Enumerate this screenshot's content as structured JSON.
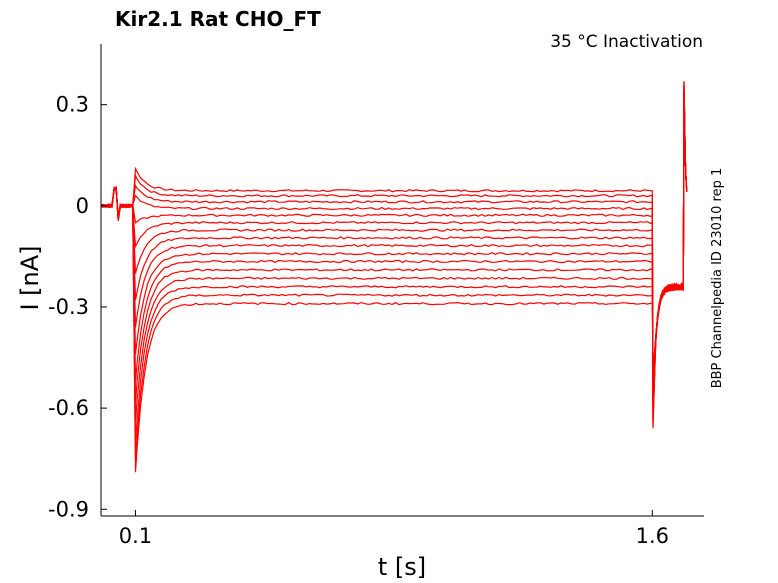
{
  "chart_data": {
    "type": "line",
    "title": "Kir2.1  Rat  CHO_FT",
    "subtitle": "35 °C  Inactivation",
    "side_label": "BBP Channelpedia ID 23010 rep 1",
    "xlabel": "t [s]",
    "ylabel": "I [nA]",
    "xlim": [
      0.0,
      1.75
    ],
    "ylim": [
      -0.92,
      0.48
    ],
    "xticks": [
      0.1,
      1.6
    ],
    "xtick_labels": [
      "0.1",
      "1.6"
    ],
    "yticks": [
      0.3,
      0,
      -0.3,
      -0.6,
      -0.9
    ],
    "ytick_labels": [
      "0.3",
      "0",
      "-0.3",
      "-0.6",
      "-0.9"
    ],
    "grid": false,
    "line_color": "#ff0000",
    "protocol": {
      "step_on": 0.1,
      "step_off": 1.6,
      "x_end": 1.7
    },
    "sweeps": [
      {
        "holding": 0.0,
        "level": 0.045,
        "peak": 0.11,
        "tail": -0.24
      },
      {
        "holding": 0.0,
        "level": 0.03,
        "peak": 0.09,
        "tail": -0.24
      },
      {
        "holding": 0.0,
        "level": 0.012,
        "peak": 0.06,
        "tail": -0.24
      },
      {
        "holding": 0.0,
        "level": -0.008,
        "peak": 0.03,
        "tail": -0.24
      },
      {
        "holding": 0.0,
        "level": -0.028,
        "peak": -0.05,
        "tail": -0.24
      },
      {
        "holding": 0.0,
        "level": -0.05,
        "peak": -0.12,
        "tail": -0.24
      },
      {
        "holding": 0.0,
        "level": -0.072,
        "peak": -0.2,
        "tail": -0.24
      },
      {
        "holding": 0.0,
        "level": -0.095,
        "peak": -0.28,
        "tail": -0.24
      },
      {
        "holding": 0.0,
        "level": -0.118,
        "peak": -0.36,
        "tail": -0.24
      },
      {
        "holding": 0.0,
        "level": -0.142,
        "peak": -0.44,
        "tail": -0.24
      },
      {
        "holding": 0.0,
        "level": -0.165,
        "peak": -0.52,
        "tail": -0.24
      },
      {
        "holding": 0.0,
        "level": -0.19,
        "peak": -0.58,
        "tail": -0.24
      },
      {
        "holding": 0.0,
        "level": -0.215,
        "peak": -0.64,
        "tail": -0.24
      },
      {
        "holding": 0.0,
        "level": -0.24,
        "peak": -0.7,
        "tail": -0.24
      },
      {
        "holding": 0.0,
        "level": -0.265,
        "peak": -0.75,
        "tail": -0.24
      },
      {
        "holding": 0.0,
        "level": -0.29,
        "peak": -0.79,
        "tail": -0.24
      }
    ],
    "off_transient_min": -0.66,
    "end_spike_max": 0.37,
    "end_settle": -0.01
  }
}
